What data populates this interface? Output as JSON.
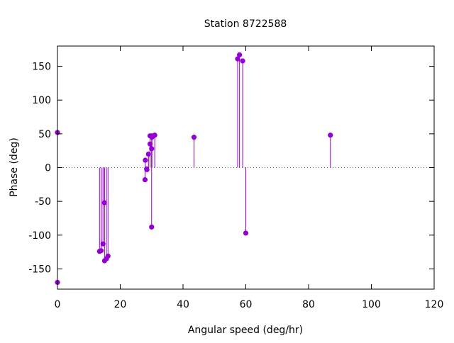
{
  "chart_data": {
    "type": "scatter",
    "style": "impulses-with-points",
    "title": "Station 8722588",
    "xlabel": "Angular speed (deg/hr)",
    "ylabel": "Phase (deg)",
    "xlim": [
      0,
      120
    ],
    "ylim": [
      -180,
      180
    ],
    "x_ticks": [
      0,
      20,
      40,
      60,
      80,
      100,
      120
    ],
    "y_ticks": [
      -150,
      -100,
      -50,
      0,
      50,
      100,
      150
    ],
    "zero_line": "dotted",
    "grid": false,
    "legend": "none",
    "series_color": "#9400d3",
    "points": [
      {
        "x": 0.0,
        "y": 52
      },
      {
        "x": 0.0,
        "y": -170
      },
      {
        "x": 13.4,
        "y": -124
      },
      {
        "x": 13.9,
        "y": -123
      },
      {
        "x": 14.5,
        "y": -113
      },
      {
        "x": 14.96,
        "y": -52
      },
      {
        "x": 15.0,
        "y": -138
      },
      {
        "x": 15.6,
        "y": -135
      },
      {
        "x": 16.1,
        "y": -131
      },
      {
        "x": 27.9,
        "y": -18
      },
      {
        "x": 28.0,
        "y": 11
      },
      {
        "x": 28.4,
        "y": -2
      },
      {
        "x": 28.5,
        "y": -3
      },
      {
        "x": 29.0,
        "y": 20
      },
      {
        "x": 29.5,
        "y": 35
      },
      {
        "x": 29.5,
        "y": 47
      },
      {
        "x": 30.0,
        "y": -88
      },
      {
        "x": 30.0,
        "y": 28
      },
      {
        "x": 30.0,
        "y": 47
      },
      {
        "x": 30.1,
        "y": 45
      },
      {
        "x": 31.0,
        "y": 48
      },
      {
        "x": 43.5,
        "y": 45
      },
      {
        "x": 57.4,
        "y": 161
      },
      {
        "x": 58.0,
        "y": 167
      },
      {
        "x": 59.0,
        "y": 158
      },
      {
        "x": 60.0,
        "y": -97
      },
      {
        "x": 86.95,
        "y": 48
      }
    ]
  }
}
